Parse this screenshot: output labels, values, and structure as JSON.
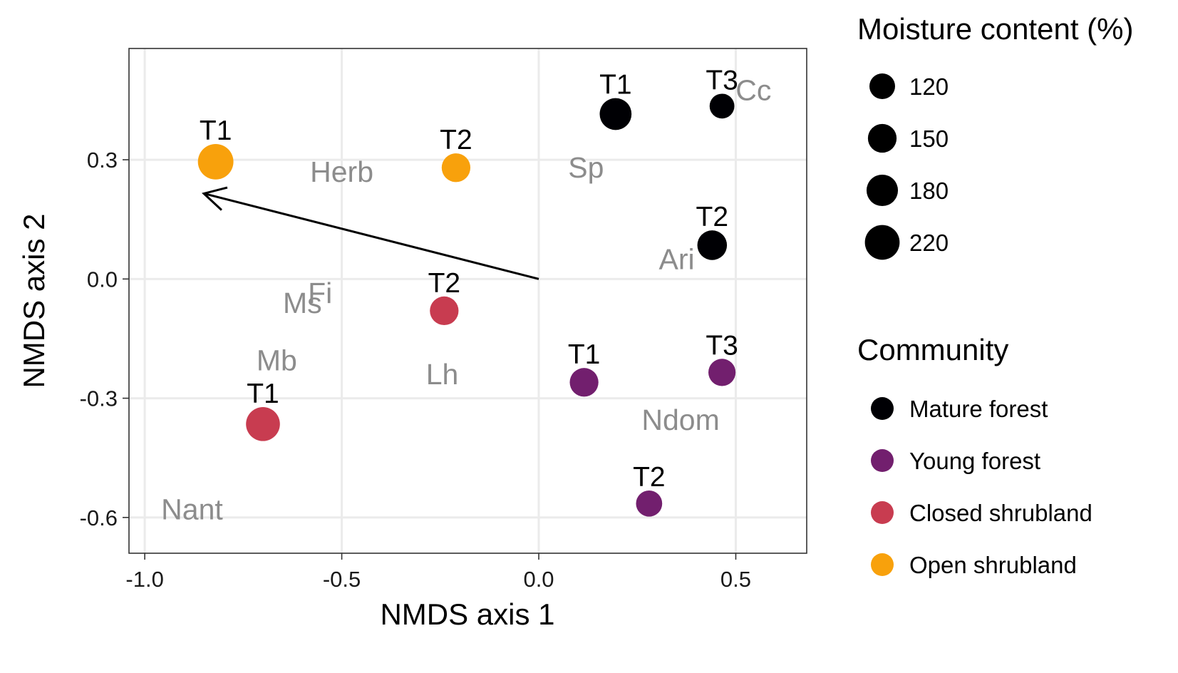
{
  "chart_data": {
    "type": "scatter",
    "xlabel": "NMDS axis 1",
    "ylabel": "NMDS axis 2",
    "xlim": [
      -1.04,
      0.68
    ],
    "ylim": [
      -0.69,
      0.58
    ],
    "x_ticks": [
      -1.0,
      -0.5,
      0.0,
      0.5
    ],
    "x_tick_labels": [
      "-1.0",
      "-0.5",
      "0.0",
      "0.5"
    ],
    "y_ticks": [
      0.3,
      0.0,
      -0.3,
      -0.6
    ],
    "y_tick_labels": [
      "0.3",
      "0.0",
      "-0.3",
      "-0.6"
    ],
    "grid": true,
    "points": [
      {
        "label": "T1",
        "community": "Mature forest",
        "x": 0.195,
        "y": 0.415,
        "moisture": 185
      },
      {
        "label": "T3",
        "community": "Mature forest",
        "x": 0.465,
        "y": 0.435,
        "moisture": 112
      },
      {
        "label": "T2",
        "community": "Mature forest",
        "x": 0.44,
        "y": 0.085,
        "moisture": 160
      },
      {
        "label": "T1",
        "community": "Young forest",
        "x": 0.115,
        "y": -0.26,
        "moisture": 150
      },
      {
        "label": "T3",
        "community": "Young forest",
        "x": 0.465,
        "y": -0.235,
        "moisture": 135
      },
      {
        "label": "T2",
        "community": "Young forest",
        "x": 0.28,
        "y": -0.565,
        "moisture": 125
      },
      {
        "label": "T2",
        "community": "Closed shrubland",
        "x": -0.24,
        "y": -0.08,
        "moisture": 150
      },
      {
        "label": "T1",
        "community": "Closed shrubland",
        "x": -0.7,
        "y": -0.365,
        "moisture": 210
      },
      {
        "label": "T1",
        "community": "Open shrubland",
        "x": -0.82,
        "y": 0.295,
        "moisture": 230
      },
      {
        "label": "T2",
        "community": "Open shrubland",
        "x": -0.21,
        "y": 0.28,
        "moisture": 150
      }
    ],
    "species": [
      {
        "label": "Cc",
        "x": 0.545,
        "y": 0.475
      },
      {
        "label": "Herb",
        "x": -0.5,
        "y": 0.27
      },
      {
        "label": "Sp",
        "x": 0.12,
        "y": 0.28
      },
      {
        "label": "Ari",
        "x": 0.35,
        "y": 0.05
      },
      {
        "label": "Fi",
        "x": -0.555,
        "y": -0.035
      },
      {
        "label": "Ms",
        "x": -0.6,
        "y": -0.06
      },
      {
        "label": "Mb",
        "x": -0.665,
        "y": -0.205
      },
      {
        "label": "Lh",
        "x": -0.245,
        "y": -0.24
      },
      {
        "label": "Ndom",
        "x": 0.36,
        "y": -0.355
      },
      {
        "label": "Nant",
        "x": -0.88,
        "y": -0.58
      }
    ],
    "arrow": {
      "x0": 0.0,
      "y0": 0.0,
      "x1": -0.85,
      "y1": 0.215
    },
    "size_legend": {
      "title": "Moisture content (%)",
      "entries": [
        {
          "label": "120",
          "value": 120
        },
        {
          "label": "150",
          "value": 150
        },
        {
          "label": "180",
          "value": 180
        },
        {
          "label": "220",
          "value": 220
        }
      ]
    },
    "color_legend": {
      "title": "Community",
      "entries": [
        {
          "label": "Mature forest",
          "color": "#000004"
        },
        {
          "label": "Young forest",
          "color": "#721f6e"
        },
        {
          "label": "Closed shrubland",
          "color": "#c83c50"
        },
        {
          "label": "Open shrubland",
          "color": "#f8a10c"
        }
      ]
    },
    "legend_position": "right"
  }
}
